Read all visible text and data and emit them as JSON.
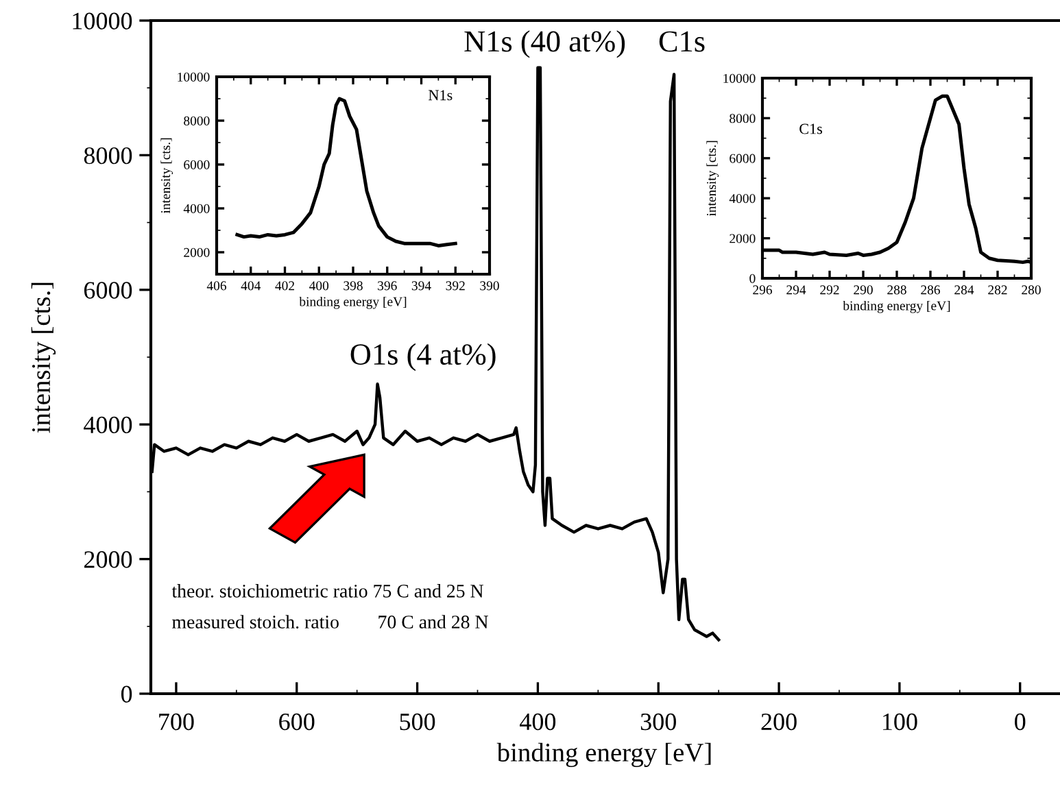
{
  "chart_data": [
    {
      "type": "line",
      "xlabel": "binding energy [eV]",
      "ylabel": "intensity [cts.]",
      "xlim": [
        721,
        -32
      ],
      "ylim": [
        0,
        10000
      ],
      "xticks": [
        700,
        600,
        500,
        400,
        300,
        200,
        100,
        0
      ],
      "yticks": [
        0,
        2000,
        4000,
        6000,
        8000,
        10000
      ],
      "grid": false,
      "marker": "none",
      "line_style": "solid",
      "series": [
        {
          "color": "#000000",
          "x": [
            720,
            718,
            710,
            700,
            690,
            680,
            670,
            660,
            650,
            640,
            630,
            620,
            610,
            600,
            590,
            580,
            570,
            560,
            550,
            545,
            540,
            535,
            533,
            531,
            528,
            520,
            510,
            500,
            490,
            480,
            470,
            460,
            450,
            440,
            430,
            420,
            418,
            415,
            412,
            408,
            404,
            402,
            400,
            398,
            396,
            394,
            392,
            390,
            388,
            380,
            370,
            360,
            350,
            340,
            330,
            320,
            310,
            305,
            300,
            296,
            292,
            290,
            287,
            285,
            283,
            280,
            278,
            275,
            270,
            265,
            260,
            255,
            250
          ],
          "values": [
            3300,
            3700,
            3600,
            3650,
            3550,
            3650,
            3600,
            3700,
            3650,
            3750,
            3700,
            3800,
            3750,
            3850,
            3750,
            3800,
            3850,
            3750,
            3900,
            3700,
            3800,
            4000,
            4600,
            4400,
            3800,
            3700,
            3900,
            3750,
            3800,
            3700,
            3800,
            3750,
            3850,
            3750,
            3800,
            3850,
            3950,
            3600,
            3300,
            3100,
            3000,
            3400,
            9300,
            9300,
            3000,
            2500,
            3200,
            3200,
            2600,
            2500,
            2400,
            2500,
            2450,
            2500,
            2450,
            2550,
            2600,
            2400,
            2100,
            1500,
            2000,
            8800,
            9200,
            2000,
            1100,
            1700,
            1700,
            1100,
            950,
            900,
            850,
            900,
            800
          ]
        }
      ],
      "annotations": [
        "N1s (40 at%)",
        "C1s",
        "O1s (4 at%)",
        "theor. stoichiometric ratio 75 C and 25 N",
        "measured stoich. ratio        70 C and 28 N"
      ]
    },
    {
      "type": "line",
      "xlabel": "binding energy [eV]",
      "ylabel": "intensity [cts.]",
      "xlim": [
        406,
        390
      ],
      "ylim": [
        1000,
        10000
      ],
      "xticks": [
        406,
        404,
        402,
        400,
        398,
        396,
        394,
        392,
        390
      ],
      "yticks": [
        2000,
        4000,
        6000,
        8000,
        10000
      ],
      "grid": false,
      "marker": "none",
      "line_style": "solid",
      "series": [
        {
          "color": "#000000",
          "x": [
            404.8,
            404.4,
            404,
            403.5,
            403,
            402.5,
            402,
            401.5,
            401,
            400.5,
            400,
            399.7,
            399.4,
            399.2,
            399,
            398.8,
            398.5,
            398.2,
            397.8,
            397.5,
            397.2,
            396.8,
            396.5,
            396,
            395.5,
            395,
            394.5,
            394,
            393.5,
            393,
            392.5,
            392
          ],
          "values": [
            2800,
            2700,
            2750,
            2700,
            2800,
            2750,
            2800,
            2900,
            3300,
            3800,
            5000,
            6000,
            6500,
            7800,
            8700,
            9000,
            8900,
            8200,
            7600,
            6200,
            4800,
            3800,
            3200,
            2700,
            2500,
            2400,
            2400,
            2400,
            2400,
            2300,
            2350,
            2400
          ]
        }
      ],
      "annotations": [
        "N1s"
      ]
    },
    {
      "type": "line",
      "xlabel": "binding energy [eV]",
      "ylabel": "intensity [cts.]",
      "xlim": [
        296,
        280
      ],
      "ylim": [
        0,
        10000
      ],
      "xticks": [
        296,
        294,
        292,
        290,
        288,
        286,
        284,
        282,
        280
      ],
      "yticks": [
        0,
        2000,
        4000,
        6000,
        8000,
        10000
      ],
      "grid": false,
      "marker": "none",
      "line_style": "solid",
      "series": [
        {
          "color": "#000000",
          "x": [
            296,
            295,
            294.8,
            294,
            293,
            292.3,
            292,
            291,
            290.3,
            290,
            289.5,
            289,
            288.5,
            288,
            287.5,
            287,
            286.5,
            286,
            285.7,
            285.3,
            285,
            284.7,
            284.3,
            284,
            283.7,
            283.3,
            283,
            282.5,
            282,
            281,
            280.5,
            280.2,
            280
          ],
          "values": [
            1400,
            1400,
            1300,
            1300,
            1200,
            1300,
            1200,
            1150,
            1250,
            1150,
            1200,
            1300,
            1500,
            1800,
            2800,
            4000,
            6500,
            8000,
            8900,
            9100,
            9100,
            8500,
            7700,
            5500,
            3700,
            2500,
            1300,
            1000,
            900,
            850,
            800,
            850,
            800
          ]
        }
      ],
      "annotations": [
        "C1s"
      ]
    }
  ]
}
